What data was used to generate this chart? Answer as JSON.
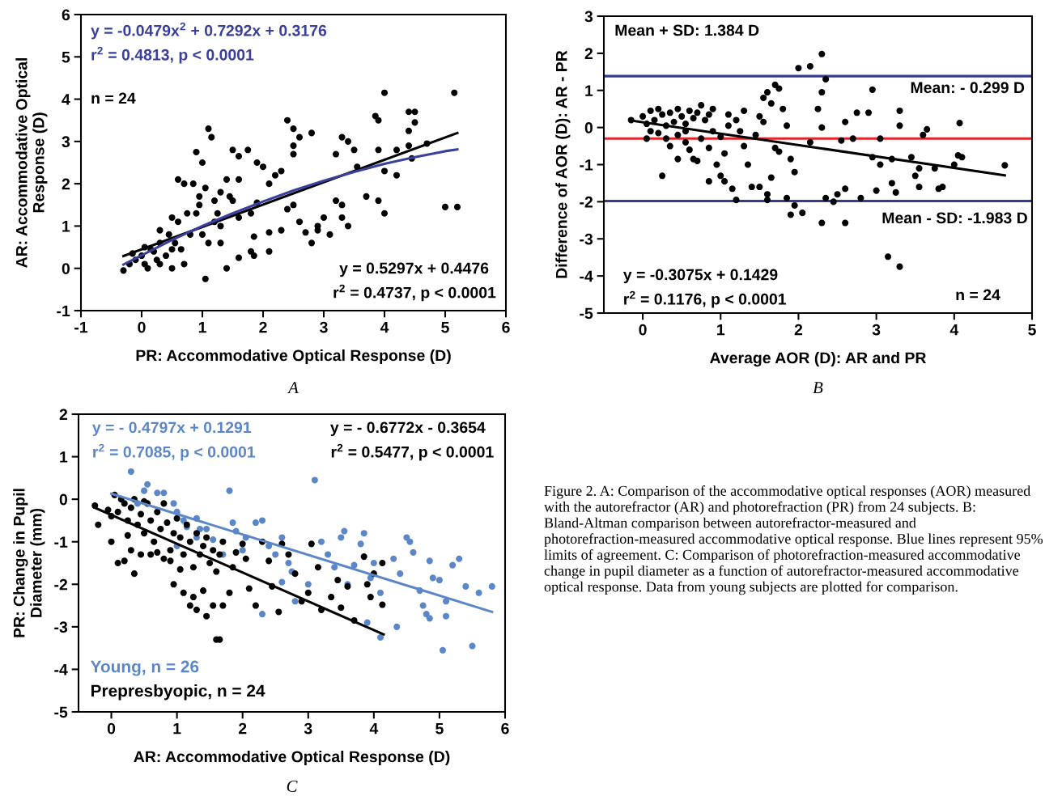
{
  "chart_data": [
    {
      "type": "scatter",
      "xlabel": "PR: Accommodative Optical Response (D)",
      "ylabel": "AR: Accommodative Optical\nResponse (D)",
      "xlim": [
        -1,
        6
      ],
      "ylim": [
        -1,
        6
      ],
      "xticks": [
        -1,
        0,
        1,
        2,
        3,
        4,
        5,
        6
      ],
      "yticks": [
        -1,
        0,
        1,
        2,
        3,
        4,
        5,
        6
      ],
      "marker": "circle",
      "annotations": [
        "y = -0.0479x$^{2}$ + 0.7292x + 0.3176",
        "r$^{2}$ = 0.4813, p < 0.0001",
        "n = 24",
        "y = 0.5297x + 0.4476",
        "r$^{2}$ = 0.4737, p < 0.0001",
        "A"
      ],
      "series": [
        {
          "type": "scatter",
          "color": "#000000",
          "x": [
            4.0,
            5.15,
            4.4,
            4.5,
            4.5,
            4.4,
            3.85,
            3.9,
            3.3,
            3.4,
            3.5,
            2.4,
            2.5,
            2.6,
            2.5,
            2.8,
            2.5,
            3.55,
            3.2,
            3.9,
            4.2,
            4.4,
            4.7,
            4.45,
            4.0,
            4.2,
            3.7,
            3.9,
            4.0,
            3.3,
            3.2,
            3.3,
            3.4,
            3.1,
            3.0,
            2.9,
            2.6,
            2.5,
            2.4,
            2.3,
            2.8,
            5.0,
            5.2,
            2.1,
            2.3,
            2.2,
            1.5,
            1.6,
            1.75,
            1.9,
            2.0,
            1.1,
            1.15,
            0.9,
            1.0,
            1.4,
            1.6,
            1.45,
            1.3,
            1.2,
            1.5,
            0.6,
            0.7,
            0.85,
            0.95,
            1.05,
            0.95,
            0.75,
            0.9,
            0.6,
            0.5,
            1.25,
            0.8,
            1.0,
            1.1,
            0.45,
            0.3,
            0.55,
            0.3,
            0.2,
            0.0,
            0.05,
            -0.1,
            -0.3,
            -0.2,
            0.1,
            0.3,
            0.15,
            0.4,
            0.25,
            0.5,
            0.7,
            1.05,
            1.3,
            1.8,
            1.85,
            2.1,
            1.4,
            1.6,
            1.85,
            2.1,
            2.7,
            2.9,
            1.3,
            1.6,
            1.8,
            1.9,
            0.5,
            0.65,
            1.2,
            -0.15,
            0.05
          ],
          "values": [
            4.15,
            4.15,
            3.7,
            3.7,
            3.45,
            3.25,
            3.6,
            3.5,
            3.1,
            3.0,
            2.8,
            3.5,
            3.3,
            3.1,
            2.7,
            3.2,
            2.9,
            2.4,
            2.7,
            2.8,
            2.8,
            2.9,
            2.95,
            2.6,
            2.3,
            2.2,
            1.7,
            1.6,
            1.3,
            1.5,
            1.6,
            1.2,
            1.0,
            0.8,
            1.2,
            1.0,
            1.1,
            1.5,
            1.4,
            0.9,
            0.6,
            1.45,
            1.45,
            2.0,
            2.3,
            2.2,
            2.8,
            2.65,
            2.8,
            2.5,
            2.4,
            3.3,
            3.1,
            2.75,
            2.5,
            2.1,
            2.1,
            1.7,
            1.8,
            1.6,
            1.6,
            2.1,
            2.0,
            2.0,
            1.7,
            1.9,
            1.5,
            1.3,
            1.3,
            1.1,
            1.2,
            1.3,
            0.8,
            0.8,
            0.6,
            0.8,
            0.6,
            0.6,
            0.9,
            0.4,
            0.3,
            0.5,
            0.2,
            -0.05,
            0.1,
            0.0,
            0.1,
            0.45,
            0.3,
            0.2,
            0.0,
            0.1,
            -0.25,
            0.6,
            0.4,
            0.3,
            0.4,
            0.0,
            0.25,
            0.75,
            0.85,
            0.85,
            0.9,
            1.0,
            1.2,
            1.3,
            1.55,
            0.45,
            0.45,
            1.1,
            0.35,
            0.1
          ]
        },
        {
          "type": "line",
          "marker": "none",
          "color": "#000000",
          "x": [
            -0.3,
            5.2
          ],
          "values": [
            0.29,
            3.2
          ]
        },
        {
          "type": "line",
          "marker": "none",
          "color": "#3a3f9c",
          "x": [
            -0.3,
            0.5,
            1,
            1.5,
            2,
            2.5,
            3,
            3.5,
            4,
            4.5,
            5,
            5.2
          ],
          "values": [
            0.09,
            0.67,
            1.0,
            1.3,
            1.58,
            1.84,
            2.07,
            2.28,
            2.47,
            2.63,
            2.77,
            2.81
          ]
        }
      ]
    },
    {
      "type": "scatter",
      "xlabel": "Average AOR (D): AR and PR",
      "ylabel": "Difference of AOR (D): AR - PR",
      "xlim": [
        -0.5,
        5
      ],
      "ylim": [
        -5,
        3
      ],
      "xticks": [
        0,
        1,
        2,
        3,
        4,
        5
      ],
      "yticks": [
        -5,
        -4,
        -3,
        -2,
        -1,
        0,
        1,
        2,
        3
      ],
      "marker": "circle",
      "annotations": [
        "y = -0.3075x + 0.1429",
        "r$^{2}$ = 0.1176, p < 0.0001",
        "n = 24",
        "B"
      ],
      "ref_lines": [
        {
          "axis": "y",
          "value": 1.384,
          "label": "Mean + SD: 1.384 D",
          "color": "#343a96"
        },
        {
          "axis": "y",
          "value": -0.299,
          "label": "Mean: - 0.299 D",
          "color": "#e0262b"
        },
        {
          "axis": "y",
          "value": -1.983,
          "label": "Mean - SD: -1.983 D",
          "color": "#343a96"
        }
      ],
      "series": [
        {
          "type": "scatter",
          "color": "#000000",
          "x": [
            -0.15,
            0.0,
            0.05,
            0.1,
            0.15,
            0.2,
            0.25,
            0.3,
            0.35,
            0.4,
            0.45,
            0.5,
            0.55,
            0.6,
            0.65,
            0.7,
            0.75,
            0.8,
            0.85,
            0.9,
            0.2,
            0.3,
            0.35,
            0.1,
            0.45,
            0.55,
            0.6,
            0.65,
            0.7,
            0.45,
            0.55,
            0.75,
            0.85,
            0.9,
            1.0,
            1.05,
            0.95,
            1.0,
            0.85,
            1.05,
            1.15,
            1.2,
            0.25,
            0.05,
            1.1,
            1.1,
            1.2,
            1.25,
            1.3,
            1.35,
            1.4,
            1.45,
            1.5,
            1.55,
            1.6,
            1.65,
            1.7,
            1.75,
            1.8,
            1.85,
            1.9,
            1.95,
            1.5,
            1.6,
            1.65,
            1.75,
            1.85,
            1.95,
            1.9,
            2.05,
            1.7,
            1.3,
            1.55,
            1.6,
            2.0,
            2.15,
            2.3,
            2.35,
            2.3,
            2.25,
            2.3,
            2.15,
            2.35,
            2.5,
            2.6,
            2.8,
            2.95,
            2.55,
            2.6,
            2.7,
            2.75,
            2.95,
            2.9,
            3.3,
            3.05,
            3.05,
            3.2,
            3.25,
            3.2,
            3.3,
            3.0,
            2.6,
            2.3,
            3.15,
            3.3,
            3.45,
            3.5,
            3.55,
            3.6,
            3.65,
            3.55,
            3.75,
            3.85,
            4.05,
            4.1,
            4.07,
            4.65,
            3.8,
            4.0,
            2.45
          ],
          "values": [
            0.2,
            0.3,
            0.1,
            0.45,
            0.2,
            0.5,
            0.35,
            0.05,
            0.4,
            0.15,
            0.5,
            0.3,
            0.1,
            0.45,
            0.25,
            0.4,
            0.6,
            0.2,
            0.35,
            0.5,
            -0.15,
            -0.3,
            -0.5,
            -0.1,
            -0.2,
            -0.4,
            -0.6,
            -0.85,
            -0.9,
            -0.85,
            -0.1,
            -0.3,
            -0.55,
            -0.1,
            -0.25,
            -0.7,
            -1.0,
            -1.3,
            -1.45,
            -1.45,
            -1.65,
            -1.95,
            -1.3,
            -0.3,
            0.05,
            0.35,
            0.2,
            -0.1,
            -0.5,
            -1.0,
            -1.6,
            -0.2,
            0.3,
            0.8,
            0.95,
            0.65,
            1.15,
            1.05,
            0.5,
            0.05,
            -0.85,
            -1.2,
            -1.6,
            -1.8,
            -1.35,
            -0.65,
            -1.9,
            -2.1,
            -2.35,
            -2.3,
            -0.55,
            0.45,
            0.15,
            -1.95,
            1.6,
            1.65,
            1.98,
            1.3,
            0.95,
            0.5,
            0.0,
            -0.4,
            -1.9,
            -1.8,
            -1.65,
            -1.9,
            -0.8,
            -0.35,
            0.15,
            -0.3,
            0.4,
            1.02,
            0.4,
            0.45,
            -0.3,
            -1.0,
            -1.5,
            -1.75,
            -0.85,
            0.05,
            -1.7,
            -2.57,
            -2.57,
            -3.48,
            -3.75,
            -0.8,
            -1.3,
            -1.1,
            -0.2,
            -0.05,
            -1.6,
            -1.1,
            -1.6,
            -0.75,
            -0.8,
            0.12,
            -1.02,
            -1.65,
            -1.0,
            -2.0
          ]
        },
        {
          "type": "line",
          "marker": "none",
          "color": "#000000",
          "x": [
            -0.15,
            4.65
          ],
          "values": [
            0.19,
            -1.29
          ]
        }
      ]
    },
    {
      "type": "scatter",
      "xlabel": "AR: Accommodative Optical Response (D)",
      "ylabel": "PR: Change in Pupil\nDiameter (mm)",
      "xlim": [
        -0.5,
        6
      ],
      "ylim": [
        -5,
        2
      ],
      "xticks": [
        0,
        1,
        2,
        3,
        4,
        5,
        6
      ],
      "yticks": [
        -5,
        -4,
        -3,
        -2,
        -1,
        0,
        1,
        2
      ],
      "marker": "circle",
      "legend": "bottom left",
      "annotations": [
        "y = - 0.4797x + 0.1291",
        "r$^{2}$ = 0.7085, p < 0.0001",
        "y = - 0.6772x - 0.3654",
        "r$^{2}$ = 0.5477, p < 0.0001",
        "C"
      ],
      "series": [
        {
          "type": "scatter",
          "name": "Young, n = 26",
          "color": "#5b87c9",
          "x": [
            0.3,
            0.55,
            0.5,
            0.7,
            0.8,
            0.95,
            1.0,
            1.1,
            1.15,
            1.3,
            1.35,
            1.45,
            1.55,
            1.7,
            1.8,
            1.85,
            1.9,
            2.0,
            2.05,
            2.2,
            2.3,
            2.4,
            2.5,
            2.6,
            2.7,
            2.75,
            2.8,
            3.1,
            3.2,
            3.3,
            3.4,
            3.5,
            3.55,
            3.6,
            3.7,
            3.8,
            3.85,
            3.95,
            4.0,
            4.1,
            4.3,
            4.4,
            4.5,
            4.55,
            4.6,
            4.7,
            4.75,
            4.8,
            4.85,
            4.9,
            5.0,
            5.05,
            5.1,
            5.2,
            5.3,
            5.4,
            5.5,
            5.6,
            5.8,
            4.85,
            4.35,
            4.1,
            3.9,
            2.3,
            1.3,
            0.4,
            1.0,
            2.6,
            3.0,
            5.1
          ],
          "values": [
            0.65,
            0.35,
            0.2,
            0.15,
            0.15,
            -0.1,
            -0.3,
            -0.5,
            -0.65,
            -0.45,
            -0.7,
            -0.7,
            -0.95,
            -1.3,
            0.2,
            -0.55,
            -0.75,
            -1.2,
            -0.9,
            -0.55,
            -0.5,
            -1.1,
            -1.3,
            -0.9,
            -1.5,
            -1.7,
            -2.4,
            0.45,
            -1.0,
            -1.3,
            -1.6,
            -0.9,
            -0.75,
            -2.0,
            -1.55,
            -1.05,
            -0.8,
            -1.85,
            -1.5,
            -2.2,
            -1.4,
            -1.75,
            -0.9,
            -1.0,
            -1.25,
            -2.15,
            -2.5,
            -2.7,
            -1.45,
            -1.85,
            -1.9,
            -3.55,
            -2.4,
            -1.55,
            -1.4,
            -2.05,
            -3.45,
            -2.2,
            -2.05,
            -2.8,
            -3.0,
            -3.25,
            -2.9,
            -2.7,
            -0.9,
            -0.1,
            -1.1,
            -1.95,
            -2.0,
            -2.75
          ]
        },
        {
          "type": "scatter",
          "name": "Prepresbyopic, n = 24",
          "color": "#000000",
          "x": [
            -0.25,
            -0.2,
            0.0,
            0.05,
            0.1,
            0.2,
            0.25,
            0.3,
            0.35,
            0.4,
            0.45,
            0.5,
            0.55,
            0.6,
            0.65,
            0.7,
            0.75,
            0.8,
            0.85,
            0.9,
            0.95,
            1.0,
            1.05,
            1.1,
            1.15,
            1.2,
            1.25,
            1.3,
            1.35,
            1.4,
            1.45,
            1.5,
            1.55,
            1.6,
            1.65,
            1.7,
            0.0,
            0.1,
            0.2,
            0.3,
            0.35,
            0.45,
            0.6,
            0.7,
            0.8,
            0.9,
            0.95,
            1.05,
            1.1,
            1.2,
            1.25,
            1.3,
            1.4,
            1.45,
            1.55,
            1.6,
            1.65,
            1.7,
            1.8,
            1.85,
            1.9,
            2.0,
            2.05,
            2.1,
            2.2,
            2.3,
            2.4,
            2.45,
            2.55,
            2.6,
            2.7,
            2.8,
            2.9,
            3.0,
            3.05,
            3.15,
            3.2,
            3.35,
            3.45,
            3.5,
            3.6,
            3.7,
            3.85,
            3.9,
            4.0,
            3.95,
            4.13,
            4.13,
            0.15,
            0.5,
            0.25,
            -0.05
          ],
          "values": [
            -0.15,
            -0.6,
            -0.4,
            0.1,
            -0.3,
            -0.1,
            -0.5,
            -0.2,
            0.0,
            -0.6,
            -0.35,
            -0.8,
            -0.1,
            -0.5,
            -1.0,
            -0.3,
            -0.7,
            -0.1,
            -0.55,
            -1.2,
            -0.8,
            -0.45,
            -0.9,
            -1.3,
            -0.6,
            -1.0,
            -1.6,
            -0.8,
            -1.3,
            -1.1,
            -0.9,
            -1.5,
            -1.2,
            -1.7,
            -1.3,
            -1.0,
            -1.0,
            -1.5,
            -1.45,
            -1.2,
            -1.75,
            -1.3,
            -1.3,
            -1.25,
            -1.4,
            -1.45,
            -2.0,
            -1.65,
            -2.2,
            -2.5,
            -2.3,
            -2.6,
            -2.15,
            -2.75,
            -2.5,
            -3.3,
            -3.3,
            -2.5,
            -2.2,
            -1.6,
            -1.25,
            -1.05,
            -1.4,
            -2.1,
            -2.5,
            -1.0,
            -1.45,
            -2.05,
            -2.65,
            -1.05,
            -1.3,
            -1.75,
            -2.4,
            -2.2,
            -1.05,
            -1.6,
            -2.6,
            -2.3,
            -1.9,
            -2.55,
            -2.05,
            -2.85,
            -1.35,
            -2.0,
            -1.75,
            -2.3,
            -1.5,
            -2.48,
            0.0,
            -0.05,
            -0.85,
            -0.25
          ]
        },
        {
          "type": "line",
          "marker": "none",
          "color": "#5b87c9",
          "x": [
            0,
            5.8
          ],
          "values": [
            0.13,
            -2.65
          ]
        },
        {
          "type": "line",
          "marker": "none",
          "color": "#000000",
          "x": [
            -0.25,
            4.15
          ],
          "values": [
            -0.2,
            -3.18
          ]
        }
      ]
    },
    {
      "type": "other",
      "annotations": [
        "Figure 2. A: Comparison of the accommodative optical responses (AOR) measured with the autorefractor (AR) and photorefraction (PR) from 24 subjects. B: Bland-Altman comparison between autorefractor-measured and photorefraction-measured accommodative optical response. Blue lines represent 95% limits of agreement. C: Comparison of photorefraction-measured accommodative change in pupil diameter as a function of autorefractor-measured accommodative optical response. Data from young subjects are plotted for comparison."
      ]
    }
  ]
}
